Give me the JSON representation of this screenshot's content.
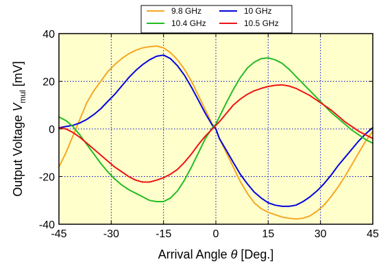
{
  "chart_data": {
    "type": "line",
    "xlabel": {
      "prefix": "Arrival Angle ",
      "symbol": "θ",
      "suffix": " [Deg.]"
    },
    "ylabel": {
      "prefix": "Output Voltage ",
      "symbol": "V",
      "subscript": "mul",
      "suffix": " [mV]"
    },
    "xlim": [
      -45,
      45
    ],
    "ylim": [
      -40,
      40
    ],
    "xticks": [
      -45,
      -30,
      -15,
      0,
      15,
      30,
      45
    ],
    "yticks": [
      -40,
      -20,
      0,
      20,
      40
    ],
    "xtick_labels": [
      "-45",
      "-30",
      "-15",
      "0",
      "15",
      "30",
      "45"
    ],
    "ytick_labels": [
      "-40",
      "-20",
      "0",
      "20",
      "40"
    ],
    "grid": true,
    "legend_position": "top-center",
    "plot_background": "#ffffcc",
    "series": [
      {
        "name": "9.8 GHz",
        "color": "#f5a623",
        "x": [
          -45,
          -43,
          -41,
          -39,
          -37,
          -35,
          -33,
          -31,
          -29,
          -27,
          -25,
          -23,
          -21,
          -19,
          -17,
          -15,
          -13,
          -11,
          -9,
          -7,
          -5,
          -3,
          -1,
          0,
          1,
          3,
          5,
          7,
          9,
          11,
          13,
          15,
          17,
          19,
          21,
          23,
          25,
          27,
          29,
          31,
          33,
          35,
          37,
          39,
          41,
          43,
          45
        ],
        "y": [
          -16,
          -10,
          -3,
          4,
          11,
          16,
          20,
          24,
          27,
          29.5,
          31.5,
          33,
          34,
          34.5,
          34.8,
          34,
          32,
          29,
          25,
          20,
          14,
          8,
          2,
          0,
          -4,
          -10,
          -16,
          -22,
          -27,
          -31,
          -33.5,
          -35,
          -36,
          -37,
          -37.5,
          -37.8,
          -37.5,
          -36.5,
          -34.5,
          -32,
          -28.5,
          -24.5,
          -20,
          -15,
          -10,
          -5,
          -1
        ]
      },
      {
        "name": "10 GHz",
        "color": "#0000e0",
        "x": [
          -45,
          -43,
          -41,
          -39,
          -37,
          -35,
          -33,
          -31,
          -29,
          -27,
          -25,
          -23,
          -21,
          -19,
          -17,
          -15,
          -13,
          -11,
          -9,
          -7,
          -5,
          -3,
          -1,
          0,
          1,
          3,
          5,
          7,
          9,
          11,
          13,
          15,
          17,
          19,
          21,
          23,
          25,
          27,
          29,
          31,
          33,
          35,
          37,
          39,
          41,
          43,
          45
        ],
        "y": [
          0.5,
          1,
          1.5,
          2.5,
          4,
          6,
          8.5,
          11.5,
          14.5,
          18,
          21.5,
          24.5,
          27,
          29,
          30.5,
          31,
          29.5,
          26.5,
          22.5,
          17.5,
          12,
          6.5,
          1.5,
          0,
          -4,
          -9,
          -14,
          -19,
          -23,
          -26.5,
          -29,
          -31,
          -32,
          -32.5,
          -32.5,
          -32,
          -30.5,
          -28.5,
          -26,
          -23,
          -19.5,
          -15.5,
          -12,
          -8.5,
          -5,
          -2,
          0.5
        ]
      },
      {
        "name": "10.4 GHz",
        "color": "#22bb22",
        "x": [
          -45,
          -43,
          -41,
          -39,
          -37,
          -35,
          -33,
          -31,
          -29,
          -27,
          -25,
          -23,
          -21,
          -19,
          -17,
          -15,
          -13,
          -11,
          -9,
          -7,
          -5,
          -3,
          -1,
          0,
          1,
          3,
          5,
          7,
          9,
          11,
          13,
          15,
          17,
          19,
          21,
          23,
          25,
          27,
          29,
          31,
          33,
          35,
          37,
          39,
          41,
          43,
          45
        ],
        "y": [
          5,
          3.5,
          1,
          -2.5,
          -6.5,
          -10.5,
          -14.5,
          -18,
          -21,
          -23.5,
          -25.5,
          -27,
          -28.5,
          -30,
          -30.5,
          -30.5,
          -29,
          -26,
          -21.5,
          -16,
          -10,
          -4,
          0.5,
          2,
          5,
          11,
          16.5,
          21.5,
          25.5,
          28,
          29.5,
          29.8,
          29,
          27.5,
          25,
          22,
          19,
          16,
          13,
          10,
          7,
          4.5,
          2,
          -0.5,
          -2.5,
          -4.5,
          -6
        ]
      },
      {
        "name": "10.5 GHz",
        "color": "#ee1111",
        "x": [
          -45,
          -43,
          -41,
          -39,
          -37,
          -35,
          -33,
          -31,
          -29,
          -27,
          -25,
          -23,
          -21,
          -19,
          -17,
          -15,
          -13,
          -11,
          -9,
          -7,
          -5,
          -3,
          -1,
          0,
          1,
          3,
          5,
          7,
          9,
          11,
          13,
          15,
          17,
          19,
          21,
          23,
          25,
          27,
          29,
          31,
          33,
          35,
          37,
          39,
          41,
          43,
          45
        ],
        "y": [
          0.5,
          0,
          -1.5,
          -3.5,
          -6,
          -8.5,
          -11,
          -13.5,
          -16,
          -18,
          -20,
          -21.5,
          -22.3,
          -22.3,
          -21.5,
          -20.5,
          -19,
          -17,
          -14,
          -10.5,
          -6.5,
          -3,
          0,
          1.5,
          3,
          6.5,
          10,
          12.5,
          14.5,
          16,
          17,
          17.8,
          18.3,
          18.5,
          18,
          17,
          15.5,
          14,
          12,
          10,
          8,
          5.5,
          3,
          1,
          -1,
          -2.5,
          -4
        ]
      }
    ]
  }
}
